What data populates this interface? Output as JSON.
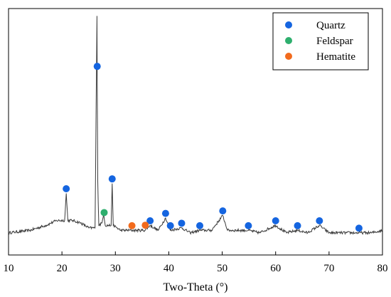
{
  "chart_data": {
    "type": "line",
    "title": "",
    "xlabel": "Two-Theta (°)",
    "ylabel": "",
    "xlim": [
      10,
      80
    ],
    "ylim": [
      0,
      100
    ],
    "x_ticks": [
      10,
      20,
      30,
      40,
      50,
      60,
      70,
      80
    ],
    "grid": false,
    "legend_position": "top-right",
    "series": [
      {
        "values": [
          {
            "x": 10,
            "y": 9
          },
          {
            "x": 14,
            "y": 10
          },
          {
            "x": 17,
            "y": 12
          },
          {
            "x": 19,
            "y": 14
          },
          {
            "x": 20.5,
            "y": 14
          },
          {
            "x": 20.8,
            "y": 25
          },
          {
            "x": 21.1,
            "y": 14
          },
          {
            "x": 22,
            "y": 14
          },
          {
            "x": 23.5,
            "y": 13
          },
          {
            "x": 25,
            "y": 11
          },
          {
            "x": 26.2,
            "y": 11
          },
          {
            "x": 26.4,
            "y": 60
          },
          {
            "x": 26.55,
            "y": 97
          },
          {
            "x": 26.7,
            "y": 30
          },
          {
            "x": 26.9,
            "y": 12
          },
          {
            "x": 27.5,
            "y": 13
          },
          {
            "x": 27.8,
            "y": 17
          },
          {
            "x": 28.1,
            "y": 12
          },
          {
            "x": 29.2,
            "y": 12
          },
          {
            "x": 29.4,
            "y": 29
          },
          {
            "x": 29.6,
            "y": 12
          },
          {
            "x": 31,
            "y": 10
          },
          {
            "x": 33,
            "y": 10
          },
          {
            "x": 35.5,
            "y": 10
          },
          {
            "x": 36.5,
            "y": 12
          },
          {
            "x": 38,
            "y": 10
          },
          {
            "x": 39.4,
            "y": 15
          },
          {
            "x": 40.3,
            "y": 10
          },
          {
            "x": 42.4,
            "y": 11
          },
          {
            "x": 44,
            "y": 9
          },
          {
            "x": 45.8,
            "y": 10
          },
          {
            "x": 48,
            "y": 10
          },
          {
            "x": 50.1,
            "y": 16
          },
          {
            "x": 51,
            "y": 10
          },
          {
            "x": 54.9,
            "y": 10
          },
          {
            "x": 57,
            "y": 9
          },
          {
            "x": 60,
            "y": 12
          },
          {
            "x": 62,
            "y": 9
          },
          {
            "x": 64.1,
            "y": 10
          },
          {
            "x": 66,
            "y": 9
          },
          {
            "x": 68.2,
            "y": 12
          },
          {
            "x": 70,
            "y": 9
          },
          {
            "x": 75.6,
            "y": 9
          },
          {
            "x": 78,
            "y": 9
          },
          {
            "x": 80,
            "y": 10
          }
        ]
      }
    ],
    "phases": [
      {
        "name": "Quartz",
        "color": "#1565E0",
        "peaks": [
          20.8,
          26.6,
          29.4,
          36.5,
          39.4,
          40.3,
          42.4,
          45.8,
          50.1,
          54.9,
          60.0,
          64.1,
          68.2,
          75.6
        ]
      },
      {
        "name": "Feldspar",
        "color": "#2EAF6E",
        "peaks": [
          27.9
        ]
      },
      {
        "name": "Hematite",
        "color": "#F26B1D",
        "peaks": [
          33.1,
          35.6
        ]
      }
    ]
  }
}
